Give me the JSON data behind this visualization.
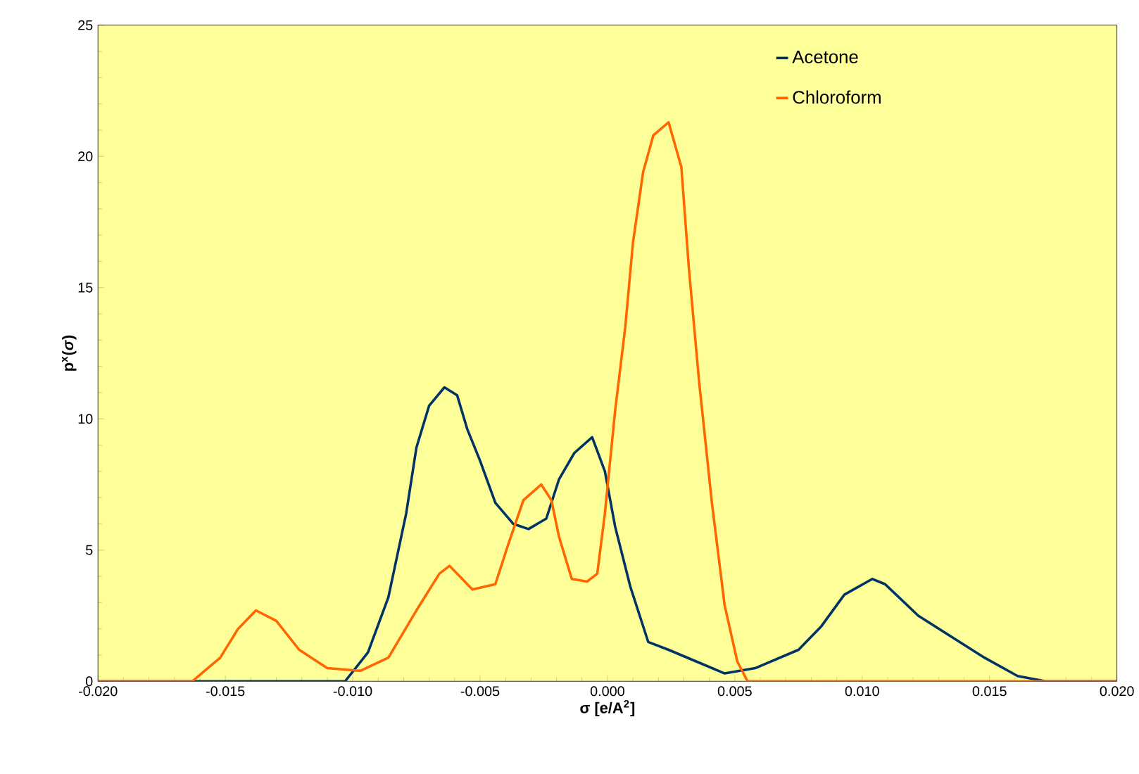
{
  "chart_data": {
    "type": "line",
    "xlabel": "**σ** [e/A$^{2}$]",
    "ylabel": "p$^{x}$(*σ*)",
    "legend": "top right",
    "marker": "none",
    "line_style": "solid",
    "xlim": [
      -0.02,
      0.02
    ],
    "ylim": [
      0,
      25
    ],
    "xticks": [
      {
        "value": -0.02,
        "label": "-0.020"
      },
      {
        "value": -0.015,
        "label": "-0.015"
      },
      {
        "value": -0.01,
        "label": "-0.010"
      },
      {
        "value": -0.005,
        "label": "-0.005"
      },
      {
        "value": 0,
        "label": "0.000"
      },
      {
        "value": 0.005,
        "label": "0.005"
      },
      {
        "value": 0.01,
        "label": "0.010"
      },
      {
        "value": 0.015,
        "label": "0.015"
      },
      {
        "value": 0.02,
        "label": "0.020"
      }
    ],
    "yticks": [
      0,
      5,
      10,
      15,
      20,
      25
    ],
    "series": [
      {
        "name": "Acetone",
        "color": "#003366",
        "x": [
          -0.02,
          -0.0103,
          -0.0094,
          -0.0086,
          -0.0079,
          -0.0075,
          -0.007,
          -0.0064,
          -0.0059,
          -0.0055,
          -0.005,
          -0.0044,
          -0.0037,
          -0.0031,
          -0.0024,
          -0.0019,
          -0.0013,
          -0.0006,
          -0.0001,
          0.0003,
          0.0009,
          0.0016,
          0.0024,
          0.0035,
          0.0046,
          0.0058,
          0.0075,
          0.0084,
          0.0093,
          0.0104,
          0.0109,
          0.0122,
          0.0135,
          0.0148,
          0.0161,
          0.0172,
          0.02
        ],
        "values": [
          0,
          0,
          1.1,
          3.2,
          6.4,
          8.9,
          10.5,
          11.2,
          10.9,
          9.6,
          8.4,
          6.8,
          6.0,
          5.8,
          6.2,
          7.7,
          8.7,
          9.3,
          8.0,
          5.9,
          3.6,
          1.5,
          1.2,
          0.75,
          0.3,
          0.5,
          1.2,
          2.1,
          3.3,
          3.9,
          3.7,
          2.5,
          1.7,
          0.9,
          0.2,
          0,
          0
        ]
      },
      {
        "name": "Chloroform",
        "color": "#ff6600",
        "x": [
          -0.02,
          -0.0163,
          -0.0152,
          -0.0145,
          -0.0138,
          -0.013,
          -0.0121,
          -0.011,
          -0.0097,
          -0.0086,
          -0.0075,
          -0.0066,
          -0.0062,
          -0.0053,
          -0.0044,
          -0.0039,
          -0.0033,
          -0.0026,
          -0.0022,
          -0.0019,
          -0.0014,
          -0.0008,
          -0.0004,
          -0.0001,
          0.0003,
          0.0007,
          0.001,
          0.0014,
          0.0018,
          0.0024,
          0.0029,
          0.0032,
          0.0036,
          0.0041,
          0.0046,
          0.0051,
          0.0055,
          0.0065,
          0.02
        ],
        "values": [
          0,
          0,
          0.9,
          2.0,
          2.7,
          2.3,
          1.2,
          0.5,
          0.4,
          0.9,
          2.7,
          4.1,
          4.4,
          3.5,
          3.7,
          5.2,
          6.9,
          7.5,
          6.9,
          5.5,
          3.9,
          3.8,
          4.1,
          6.4,
          10.3,
          13.5,
          16.7,
          19.4,
          20.8,
          21.3,
          19.6,
          15.7,
          11.4,
          6.8,
          2.9,
          0.75,
          0,
          0,
          0
        ]
      }
    ]
  }
}
